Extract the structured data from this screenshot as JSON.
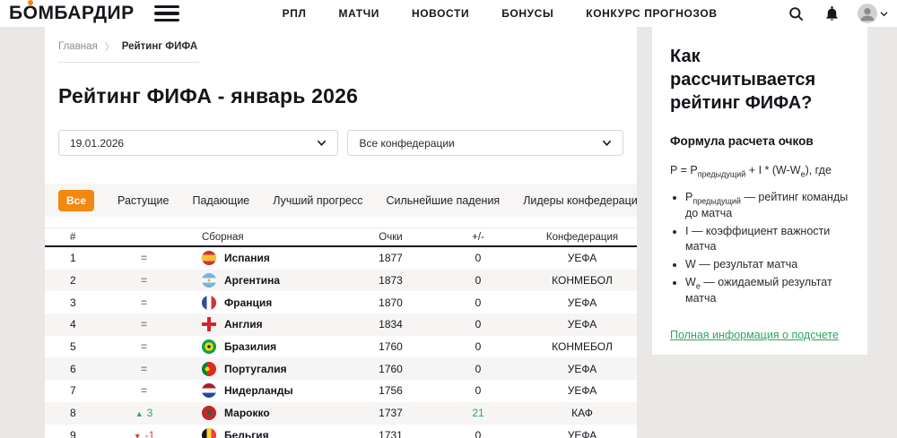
{
  "header": {
    "logo_prefix": "Б",
    "logo_accent": "О",
    "logo_suffix": "МБАРДИР",
    "nav": [
      "РПЛ",
      "МАТЧИ",
      "НОВОСТИ",
      "БОНУСЫ",
      "КОНКУРС ПРОГНОЗОВ"
    ]
  },
  "breadcrumb": {
    "home": "Главная",
    "separator": "〉",
    "current": "Рейтинг ФИФА"
  },
  "page_title": "Рейтинг ФИФА - январь 2026",
  "filters": {
    "date_value": "19.01.2026",
    "confederation_value": "Все конфедерации"
  },
  "tabs": [
    {
      "label": "Все",
      "active": true
    },
    {
      "label": "Растущие",
      "active": false
    },
    {
      "label": "Падающие",
      "active": false
    },
    {
      "label": "Лучший прогресс",
      "active": false
    },
    {
      "label": "Сильнейшие падения",
      "active": false
    },
    {
      "label": "Лидеры конфедераций",
      "active": false
    }
  ],
  "table": {
    "headers": {
      "rank": "#",
      "team": "Сборная",
      "points": "Очки",
      "diff": "+/-",
      "confederation": "Конфедерация"
    },
    "rows": [
      {
        "rank": "1",
        "move": "=",
        "move_dir": "same",
        "team": "Испания",
        "flag": "spain",
        "points": "1877",
        "diff": "0",
        "diff_green": false,
        "confederation": "УЕФА"
      },
      {
        "rank": "2",
        "move": "=",
        "move_dir": "same",
        "team": "Аргентина",
        "flag": "argentina",
        "points": "1873",
        "diff": "0",
        "diff_green": false,
        "confederation": "КОНМЕБОЛ"
      },
      {
        "rank": "3",
        "move": "=",
        "move_dir": "same",
        "team": "Франция",
        "flag": "france",
        "points": "1870",
        "diff": "0",
        "diff_green": false,
        "confederation": "УЕФА"
      },
      {
        "rank": "4",
        "move": "=",
        "move_dir": "same",
        "team": "Англия",
        "flag": "england",
        "points": "1834",
        "diff": "0",
        "diff_green": false,
        "confederation": "УЕФА"
      },
      {
        "rank": "5",
        "move": "=",
        "move_dir": "same",
        "team": "Бразилия",
        "flag": "brazil",
        "points": "1760",
        "diff": "0",
        "diff_green": false,
        "confederation": "КОНМЕБОЛ"
      },
      {
        "rank": "6",
        "move": "=",
        "move_dir": "same",
        "team": "Португалия",
        "flag": "portugal",
        "points": "1760",
        "diff": "0",
        "diff_green": false,
        "confederation": "УЕФА"
      },
      {
        "rank": "7",
        "move": "=",
        "move_dir": "same",
        "team": "Нидерланды",
        "flag": "netherlands",
        "points": "1756",
        "diff": "0",
        "diff_green": false,
        "confederation": "УЕФА"
      },
      {
        "rank": "8",
        "move": "3",
        "move_dir": "up",
        "team": "Марокко",
        "flag": "morocco",
        "points": "1737",
        "diff": "21",
        "diff_green": true,
        "confederation": "КАФ"
      },
      {
        "rank": "9",
        "move": "-1",
        "move_dir": "down",
        "team": "Бельгия",
        "flag": "belgium",
        "points": "1731",
        "diff": "0",
        "diff_green": false,
        "confederation": "УЕФА"
      }
    ]
  },
  "sidebar": {
    "title": "Как рассчитывается рейтинг ФИФА?",
    "subtitle": "Формула расчета очков",
    "formula": {
      "p1": "P = P",
      "sub1": "предыдущий",
      "p2": " + I * (W-W",
      "sub2": "e",
      "p3": "), где"
    },
    "bullets": [
      {
        "pre": "P",
        "sub": "предыдущий",
        "post": " — рейтинг команды до матча"
      },
      {
        "pre": "I",
        "sub": "",
        "post": " — коэффициент важности матча"
      },
      {
        "pre": "W",
        "sub": "",
        "post": " — результат матча"
      },
      {
        "pre": "W",
        "sub": "e",
        "post": " — ожидаемый результат матча"
      }
    ],
    "link": "Полная информация о подсчете"
  },
  "icons": {
    "up_arrow": "▲",
    "down_arrow": "▼"
  },
  "colors": {
    "accent_orange": "#f1880f",
    "up_green": "#2da565",
    "down_red": "#e23b3b",
    "link_green": "#2da565"
  }
}
